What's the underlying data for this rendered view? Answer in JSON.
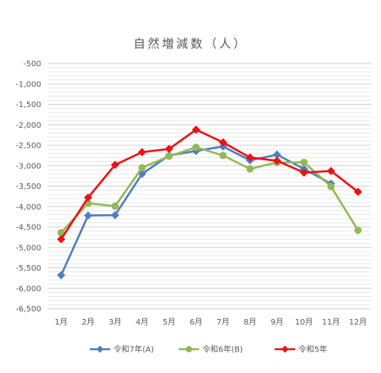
{
  "chart_data": {
    "type": "line",
    "title": "自然増減数（人）",
    "categories": [
      "1月",
      "2月",
      "3月",
      "4月",
      "5月",
      "6月",
      "7月",
      "8月",
      "9月",
      "10月",
      "11月",
      "12月"
    ],
    "ylim": [
      -6500,
      -500
    ],
    "ytick_step": 100,
    "ytick_label_step": 500,
    "grid": true,
    "legend_position": "bottom",
    "series": [
      {
        "name": "令和7年(A)",
        "color": "#4f7ec0",
        "marker": "diamond",
        "values": [
          -5680,
          -4220,
          -4210,
          -3200,
          -2750,
          -2640,
          -2530,
          -2870,
          -2730,
          -3080,
          -3440,
          null
        ]
      },
      {
        "name": "令和6年(B)",
        "color": "#92b955",
        "marker": "circle",
        "values": [
          -4640,
          -3920,
          -3990,
          -3050,
          -2770,
          -2550,
          -2750,
          -3080,
          -2920,
          -2920,
          -3510,
          -4580
        ]
      },
      {
        "name": "令和5年",
        "color": "#ee1111",
        "marker": "diamond",
        "values": [
          -4800,
          -3780,
          -2980,
          -2670,
          -2590,
          -2120,
          -2430,
          -2800,
          -2880,
          -3170,
          -3130,
          -3640
        ]
      }
    ],
    "ytick_labels": [
      "-500",
      "-1,000",
      "-1,500",
      "-2,000",
      "-2,500",
      "-3,000",
      "-3,500",
      "-4,000",
      "-4,500",
      "-5,000",
      "-5,500",
      "-6,000",
      "-6,500"
    ]
  }
}
